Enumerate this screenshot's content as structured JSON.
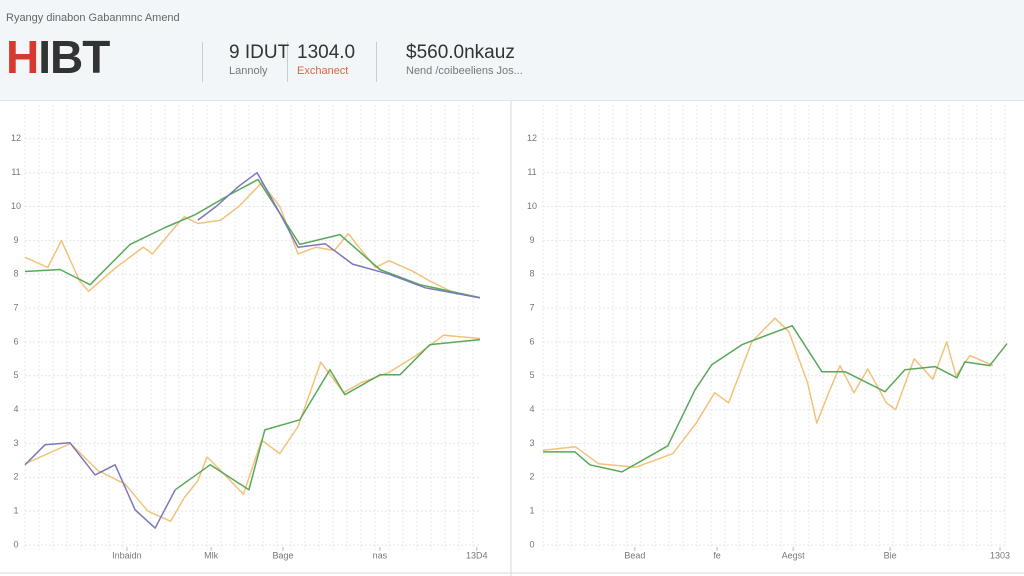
{
  "header": {
    "title": "Ryangy dinabon Gabanmnc Amend",
    "logo": "HIBT",
    "stats": [
      {
        "value": "9 IDUT",
        "label": "Lannoly"
      },
      {
        "value": "1304.0",
        "label": "Exchanect"
      },
      {
        "value": "$560.0nkauz",
        "label": "Nend /coibeeliens Jos..."
      }
    ]
  },
  "chart_data": [
    {
      "type": "line",
      "grid": true,
      "xlim": [
        0,
        100
      ],
      "ylim": [
        0,
        13
      ],
      "yticks": [
        0,
        1,
        2,
        3,
        4,
        5,
        6,
        7,
        8,
        9,
        10,
        11,
        12
      ],
      "xticks": [
        {
          "value": 22.4,
          "label": "Inbaidn"
        },
        {
          "value": 40.9,
          "label": "Mlk"
        },
        {
          "value": 56.7,
          "label": "Bage"
        },
        {
          "value": 78,
          "label": "nas"
        },
        {
          "value": 99.3,
          "label": "13D4"
        }
      ],
      "series": [
        {
          "color": "#f2c27b",
          "x": [
            0,
            5,
            8,
            12,
            14,
            20,
            26,
            28,
            33,
            35,
            38,
            43,
            47,
            52,
            56,
            60,
            64,
            68,
            71,
            77,
            80,
            85,
            89,
            95
          ],
          "values": [
            8.5,
            8.2,
            9.0,
            7.8,
            7.5,
            8.2,
            8.8,
            8.6,
            9.4,
            9.7,
            9.5,
            9.6,
            10.0,
            10.7,
            10.0,
            8.6,
            8.8,
            8.7,
            9.2,
            8.2,
            8.4,
            8.1,
            7.8,
            7.4
          ]
        },
        {
          "color": "#5aa85a",
          "x": [
            0,
            7.7,
            14.3,
            23.1,
            30.8,
            37.4,
            45.1,
            51.2,
            60.4,
            69.2,
            78,
            86.8,
            100
          ],
          "values": [
            8.08,
            8.14,
            7.69,
            8.88,
            9.38,
            9.76,
            10.36,
            10.8,
            8.88,
            9.17,
            8.14,
            7.69,
            7.31
          ]
        },
        {
          "color": "#7a78b8",
          "x": [
            38,
            42,
            47,
            51,
            56,
            60,
            66,
            72,
            80,
            88,
            100
          ],
          "values": [
            9.6,
            10.0,
            10.6,
            11.0,
            9.8,
            8.8,
            8.9,
            8.3,
            8.0,
            7.6,
            7.3
          ]
        },
        {
          "color": "#f2c27b",
          "x": [
            0,
            10,
            16,
            22,
            27,
            32,
            35,
            38,
            40,
            43,
            48,
            52,
            56,
            60,
            65,
            70,
            74,
            80,
            86,
            92,
            100
          ],
          "values": [
            2.4,
            3.0,
            2.2,
            1.8,
            1.0,
            0.7,
            1.4,
            1.9,
            2.6,
            2.2,
            1.5,
            3.1,
            2.7,
            3.5,
            5.4,
            4.5,
            4.8,
            5.1,
            5.6,
            6.2,
            6.1
          ]
        },
        {
          "color": "#7a78b8",
          "x": [
            0,
            4.4,
            9.9,
            15.4,
            19.8,
            24.2,
            28.6,
            33
          ],
          "values": [
            2.37,
            2.96,
            3.02,
            2.07,
            2.37,
            1.04,
            0.5,
            1.63
          ]
        },
        {
          "color": "#5aa85a",
          "x": [
            33,
            40.7,
            49.2,
            52.7,
            60.4,
            67,
            70.3,
            78,
            82.4,
            89,
            100
          ],
          "values": [
            1.63,
            2.37,
            1.63,
            3.4,
            3.7,
            5.18,
            4.44,
            5.03,
            5.03,
            5.92,
            6.07
          ]
        }
      ]
    },
    {
      "type": "line",
      "grid": true,
      "xlim": [
        0,
        100
      ],
      "ylim": [
        0,
        13
      ],
      "yticks": [
        0,
        1,
        2,
        3,
        4,
        5,
        6,
        7,
        8,
        9,
        10,
        11,
        12
      ],
      "xticks": [
        {
          "value": 19.8,
          "label": "Bead"
        },
        {
          "value": 37.5,
          "label": "fe"
        },
        {
          "value": 53.9,
          "label": "Aegst"
        },
        {
          "value": 74.8,
          "label": "Bie"
        },
        {
          "value": 98.5,
          "label": "1303"
        }
      ],
      "series": [
        {
          "color": "#f2c27b",
          "x": [
            0,
            7,
            12,
            20,
            28,
            33,
            37,
            40,
            45,
            50,
            53,
            57,
            59,
            61,
            64,
            67,
            70,
            74,
            76,
            80,
            84,
            87,
            89,
            92,
            97
          ],
          "values": [
            2.8,
            2.9,
            2.4,
            2.3,
            2.7,
            3.6,
            4.5,
            4.2,
            6.0,
            6.7,
            6.3,
            4.8,
            3.6,
            4.3,
            5.3,
            4.5,
            5.2,
            4.2,
            4.0,
            5.5,
            4.9,
            6.0,
            5.0,
            5.6,
            5.3
          ]
        },
        {
          "color": "#5aa85a",
          "x": [
            0,
            6.9,
            10.1,
            17,
            26.9,
            32.8,
            36.4,
            42.9,
            53.7,
            60.1,
            65.1,
            73.7,
            78,
            84.5,
            89.2,
            90.9,
            96.3,
            100
          ],
          "values": [
            2.75,
            2.75,
            2.37,
            2.16,
            2.93,
            4.59,
            5.33,
            5.92,
            6.48,
            5.12,
            5.12,
            4.53,
            5.18,
            5.27,
            4.94,
            5.41,
            5.3,
            5.95
          ]
        }
      ]
    }
  ]
}
